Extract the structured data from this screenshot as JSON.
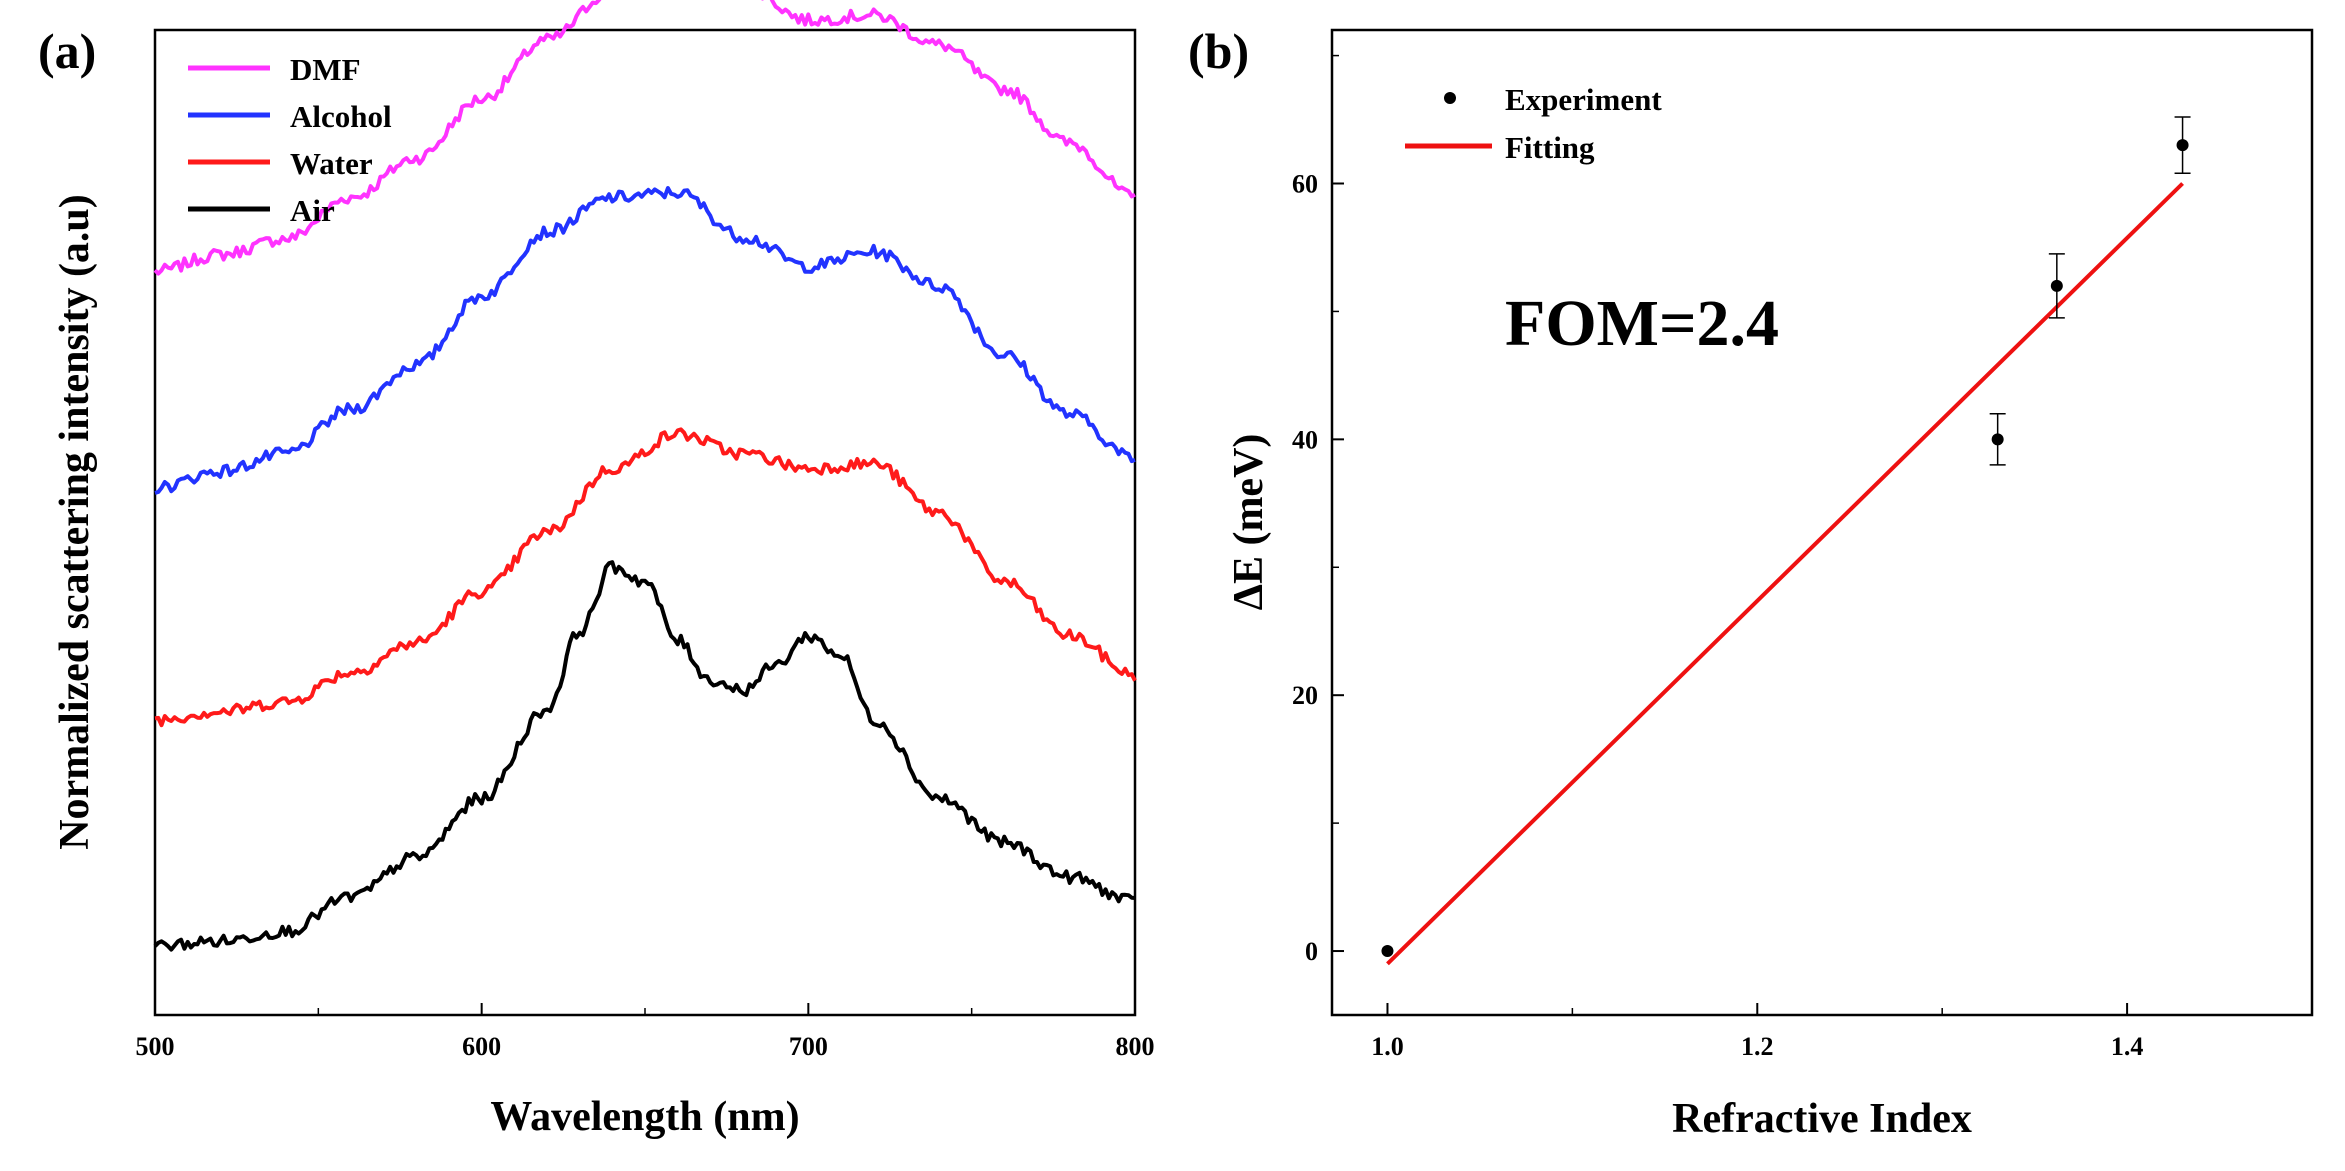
{
  "chart_data": [
    {
      "panel_label": "(a)",
      "type": "line",
      "xlabel": "Wavelength (nm)",
      "ylabel": "Normalized scattering intensity (a.u)",
      "xlim": [
        500,
        800
      ],
      "xticks": [
        "500",
        "600",
        "700",
        "800"
      ],
      "yticks_labeled": false,
      "legend_position": "top-left",
      "series": [
        {
          "name": "DMF",
          "color": "#ff33ff",
          "x": [
            500,
            520,
            540,
            560,
            580,
            600,
            620,
            640,
            660,
            680,
            700,
            720,
            740,
            760,
            780,
            800
          ],
          "y": [
            0.755,
            0.772,
            0.788,
            0.83,
            0.87,
            0.93,
            0.99,
            1.04,
            1.07,
            1.045,
            1.01,
            1.015,
            0.985,
            0.94,
            0.885,
            0.83
          ]
        },
        {
          "name": "Alcohol",
          "color": "#2233ff",
          "x": [
            500,
            520,
            540,
            560,
            580,
            600,
            620,
            640,
            660,
            680,
            700,
            720,
            740,
            760,
            780,
            800
          ],
          "y": [
            0.535,
            0.552,
            0.57,
            0.615,
            0.66,
            0.73,
            0.795,
            0.83,
            0.835,
            0.79,
            0.76,
            0.775,
            0.74,
            0.67,
            0.61,
            0.565
          ]
        },
        {
          "name": "Water",
          "color": "#ff1a1a",
          "x": [
            500,
            520,
            540,
            560,
            580,
            600,
            620,
            640,
            660,
            680,
            700,
            720,
            740,
            760,
            780,
            800
          ],
          "y": [
            0.3,
            0.308,
            0.318,
            0.348,
            0.378,
            0.43,
            0.49,
            0.555,
            0.59,
            0.57,
            0.555,
            0.56,
            0.51,
            0.44,
            0.385,
            0.345
          ]
        },
        {
          "name": "Air",
          "color": "#000000",
          "x": [
            500,
            520,
            540,
            560,
            580,
            600,
            620,
            630,
            640,
            650,
            660,
            670,
            680,
            690,
            700,
            710,
            720,
            740,
            760,
            780,
            800
          ],
          "y": [
            0.07,
            0.075,
            0.085,
            0.12,
            0.16,
            0.22,
            0.31,
            0.39,
            0.455,
            0.44,
            0.38,
            0.34,
            0.33,
            0.355,
            0.385,
            0.365,
            0.3,
            0.22,
            0.175,
            0.14,
            0.115
          ]
        }
      ]
    },
    {
      "panel_label": "(b)",
      "type": "scatter",
      "xlabel": "Refractive Index",
      "ylabel": "ΔE (meV)",
      "xlim": [
        0.97,
        1.5
      ],
      "ylim": [
        -5,
        72
      ],
      "xticks": [
        "1.0",
        "1.2",
        "1.4"
      ],
      "yticks": [
        "0",
        "20",
        "40",
        "60"
      ],
      "legend_position": "top-left",
      "annotation": "FOM=2.4",
      "series": [
        {
          "name": "Experiment",
          "color": "#000000",
          "x": [
            1.0,
            1.33,
            1.362,
            1.43
          ],
          "y": [
            0,
            40,
            52,
            63
          ],
          "error": [
            0,
            2,
            2.5,
            2.2
          ]
        },
        {
          "name": "Fitting",
          "color": "#ee1111",
          "x": [
            1.0,
            1.43
          ],
          "y": [
            -1,
            60
          ]
        }
      ]
    }
  ]
}
